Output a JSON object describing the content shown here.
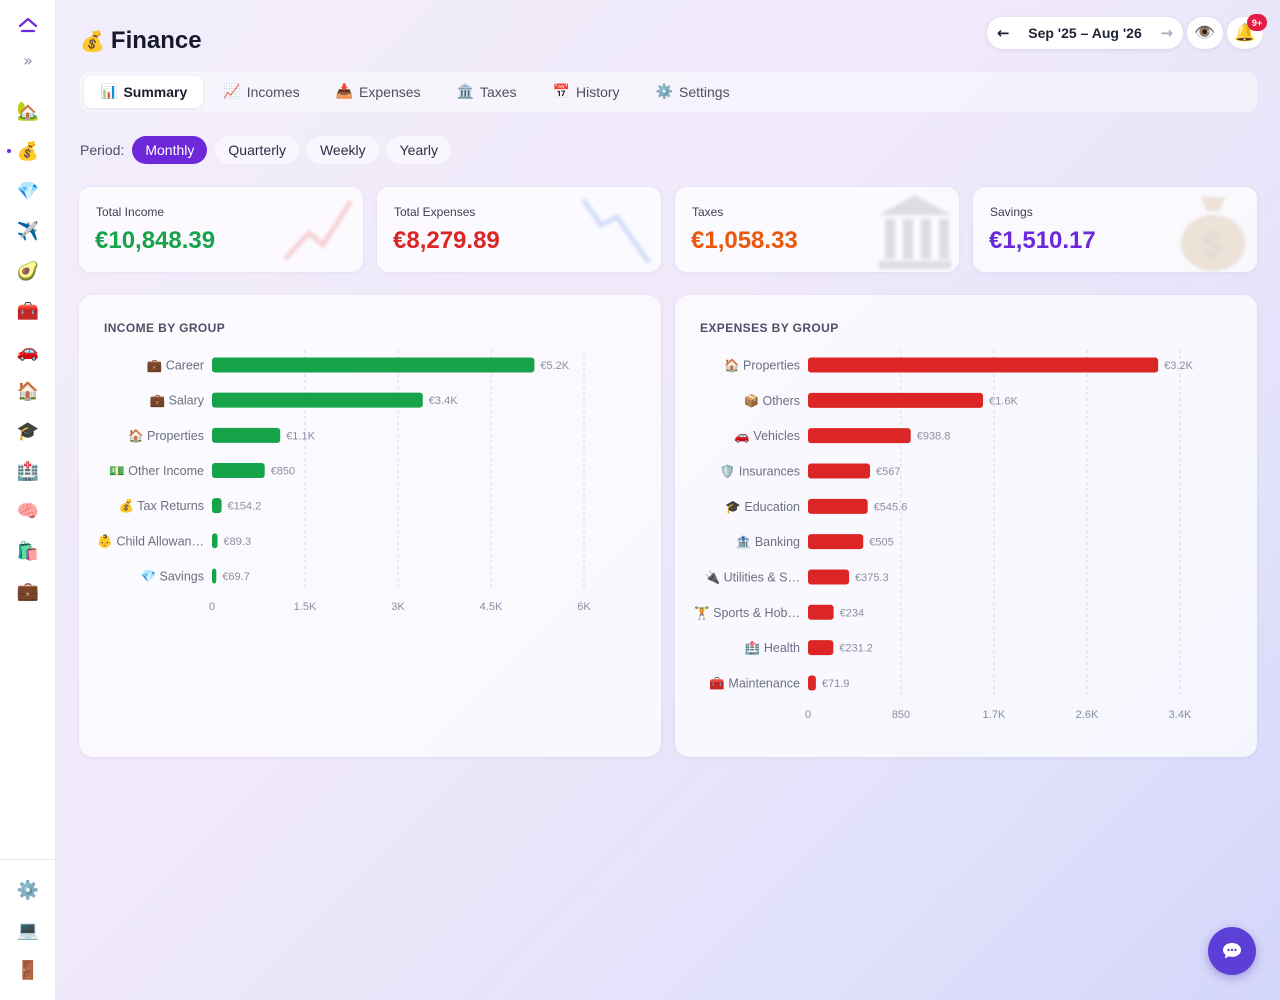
{
  "header": {
    "title": "Finance",
    "title_icon": "💰",
    "date_range": "Sep '25 – Aug '26",
    "prev_icon": "←",
    "next_icon": "→",
    "visibility_icon": "👁️",
    "notifications_icon": "🔔",
    "notifications_badge": "9+"
  },
  "sidebar": {
    "items": [
      {
        "icon": "🏡",
        "name": "home"
      },
      {
        "icon": "💰",
        "name": "finance",
        "active": true
      },
      {
        "icon": "💎",
        "name": "savings"
      },
      {
        "icon": "✈️",
        "name": "travel"
      },
      {
        "icon": "🥑",
        "name": "food"
      },
      {
        "icon": "🧰",
        "name": "tools"
      },
      {
        "icon": "🚗",
        "name": "vehicles"
      },
      {
        "icon": "🏠",
        "name": "properties"
      },
      {
        "icon": "🎓",
        "name": "education"
      },
      {
        "icon": "🏥",
        "name": "health"
      },
      {
        "icon": "🧠",
        "name": "mind"
      },
      {
        "icon": "🛍️",
        "name": "shopping"
      },
      {
        "icon": "💼",
        "name": "work"
      }
    ],
    "bottom": [
      {
        "icon": "⚙️",
        "name": "settings"
      },
      {
        "icon": "💻",
        "name": "device"
      },
      {
        "icon": "🚪",
        "name": "logout"
      }
    ]
  },
  "tabs": [
    {
      "icon": "📊",
      "label": "Summary",
      "active": true
    },
    {
      "icon": "📈",
      "label": "Incomes"
    },
    {
      "icon": "📥",
      "label": "Expenses"
    },
    {
      "icon": "🏛️",
      "label": "Taxes"
    },
    {
      "icon": "📅",
      "label": "History"
    },
    {
      "icon": "⚙️",
      "label": "Settings"
    }
  ],
  "period": {
    "label": "Period:",
    "options": [
      "Monthly",
      "Quarterly",
      "Weekly",
      "Yearly"
    ],
    "selected": "Monthly"
  },
  "stats": [
    {
      "label": "Total Income",
      "value": "€10,848.39",
      "color": "#16a34a"
    },
    {
      "label": "Total Expenses",
      "value": "€8,279.89",
      "color": "#dc2626"
    },
    {
      "label": "Taxes",
      "value": "€1,058.33",
      "color": "#ea580c"
    },
    {
      "label": "Savings",
      "value": "€1,510.17",
      "color": "#6d28d9"
    }
  ],
  "chart_data": [
    {
      "type": "bar",
      "orientation": "horizontal",
      "title": "INCOME BY GROUP",
      "categories": [
        "💼 Career",
        "💼 Salary",
        "🏠 Properties",
        "💵 Other Income",
        "💰 Tax Returns",
        "👶 Child Allowan…",
        "💎 Savings"
      ],
      "values": [
        5200,
        3400,
        1100,
        850,
        154.2,
        89.3,
        69.7
      ],
      "value_labels": [
        "€5.2K",
        "€3.4K",
        "€1.1K",
        "€850",
        "€154.2",
        "€89.3",
        "€69.7"
      ],
      "xlim": [
        0,
        6000
      ],
      "x_ticks": [
        0,
        1500,
        3000,
        4500,
        6000
      ],
      "x_tick_labels": [
        "0",
        "1.5K",
        "3K",
        "4.5K",
        "6K"
      ],
      "color": "#16a34a",
      "grid": true
    },
    {
      "type": "bar",
      "orientation": "horizontal",
      "title": "EXPENSES BY GROUP",
      "categories": [
        "🏠 Properties",
        "📦 Others",
        "🚗 Vehicles",
        "🛡️ Insurances",
        "🎓 Education",
        "🏦 Banking",
        "🔌 Utilities & S…",
        "🏋️ Sports & Hob…",
        "🏥 Health",
        "🧰 Maintenance"
      ],
      "values": [
        3200,
        1600,
        938.8,
        567,
        545.6,
        505,
        375.3,
        234,
        231.2,
        71.9
      ],
      "value_labels": [
        "€3.2K",
        "€1.6K",
        "€938.8",
        "€567",
        "€545.6",
        "€505",
        "€375.3",
        "€234",
        "€231.2",
        "€71.9"
      ],
      "xlim": [
        0,
        3400
      ],
      "x_ticks": [
        0,
        850,
        1700,
        2550,
        3400
      ],
      "x_tick_labels": [
        "0",
        "850",
        "1.7K",
        "2.6K",
        "3.4K"
      ],
      "color": "#dc2626",
      "grid": true
    }
  ],
  "chat": {
    "icon": "chat-bubble-icon"
  }
}
